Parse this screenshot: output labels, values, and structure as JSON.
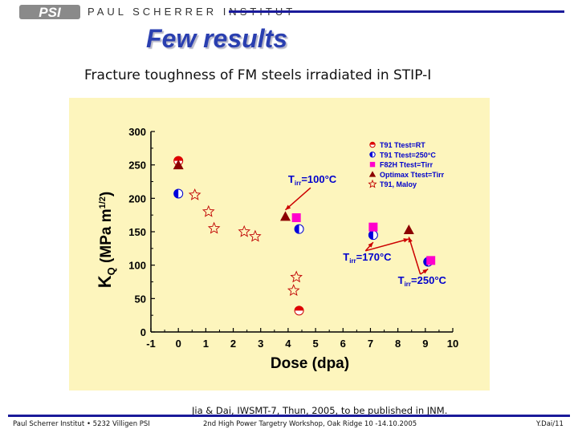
{
  "header": {
    "logo_text": "PSI",
    "institute": "PAUL SCHERRER INSTITUT"
  },
  "title": "Few results",
  "subtitle": "Fracture toughness of FM steels irradiated in STIP-I",
  "citation": "Jia & Dai, IWSMT-7, Thun, 2005, to be published in JNM.",
  "footer": {
    "left": "Paul Scherrer Institut • 5232 Villigen PSI",
    "center": "2nd High Power Targetry Workshop, Oak Ridge 10 -14.10.2005",
    "right": "Y.Dai/11"
  },
  "colors": {
    "plot_bg": "#fdf5bd",
    "accent": "#1a1a9a",
    "title": "#2a3fb0"
  },
  "chart_data": {
    "type": "scatter",
    "xlabel": "Dose (dpa)",
    "ylabel": "K_Q (MPa m^1/2)",
    "ylabel_main": "K",
    "ylabel_sub": "Q",
    "ylabel_unit": "(MPa m",
    "ylabel_exp": "1/2",
    "ylabel_close": ")",
    "xlim": [
      -1,
      10
    ],
    "ylim": [
      0,
      300
    ],
    "xticks": [
      -1,
      0,
      1,
      2,
      3,
      4,
      5,
      6,
      7,
      8,
      9,
      10
    ],
    "yticks": [
      0,
      50,
      100,
      150,
      200,
      250,
      300
    ],
    "series": [
      {
        "name": "T91 Ttest=RT",
        "marker": "half-circle-red",
        "x": [
          0,
          4.4
        ],
        "y": [
          256,
          32
        ]
      },
      {
        "name": "T91 Ttest=250°C",
        "marker": "half-circle-blue",
        "x": [
          0,
          4.4,
          7.1,
          9.1
        ],
        "y": [
          207,
          154,
          145,
          105
        ]
      },
      {
        "name": "F82H Ttest=Tirr",
        "marker": "square-magenta",
        "x": [
          4.3,
          7.1,
          9.2
        ],
        "y": [
          171,
          157,
          107
        ]
      },
      {
        "name": "Optimax Ttest=Tirr",
        "marker": "triangle-darkred",
        "x": [
          0,
          3.9,
          8.4
        ],
        "y": [
          250,
          173,
          153
        ]
      },
      {
        "name": "T91, Maloy",
        "marker": "star-outline",
        "x": [
          0.6,
          1.1,
          1.3,
          2.4,
          2.8,
          4.3,
          4.2
        ],
        "y": [
          205,
          180,
          155,
          150,
          143,
          82,
          62
        ]
      }
    ],
    "annotations": [
      {
        "base": "T",
        "sub": "irr",
        "text": "=100°C",
        "x": 4.0,
        "y": 223
      },
      {
        "base": "T",
        "sub": "irr",
        "text": "=170°C",
        "x": 6.0,
        "y": 107
      },
      {
        "base": "T",
        "sub": "irr",
        "text": "=250°C",
        "x": 8.0,
        "y": 72
      }
    ]
  }
}
